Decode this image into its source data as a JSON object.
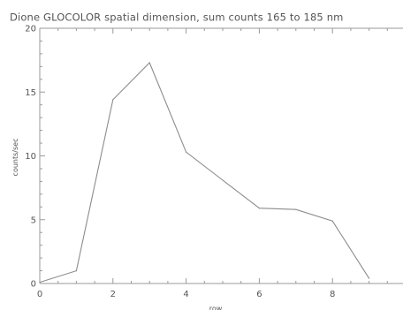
{
  "chart_data": {
    "type": "line",
    "title": "Dione GLOCOLOR spatial dimension, sum counts 165 to 185 nm",
    "xlabel": "row",
    "ylabel": "counts/sec",
    "xlim": [
      0,
      10
    ],
    "ylim": [
      0,
      20
    ],
    "x_ticks": [
      0,
      2,
      4,
      6,
      8
    ],
    "y_ticks": [
      0,
      5,
      10,
      15,
      20
    ],
    "x_minor_step": 0.5,
    "y_minor_step": 1,
    "grid": false,
    "line_color": "#8c8c8c",
    "axis_color": "#9a9a9a",
    "series": [
      {
        "x": [
          0,
          1,
          2,
          3,
          4,
          5,
          6,
          7,
          8,
          9
        ],
        "y": [
          0.1,
          1.0,
          14.4,
          17.3,
          10.3,
          8.1,
          5.9,
          5.8,
          4.9,
          0.4
        ]
      }
    ]
  }
}
